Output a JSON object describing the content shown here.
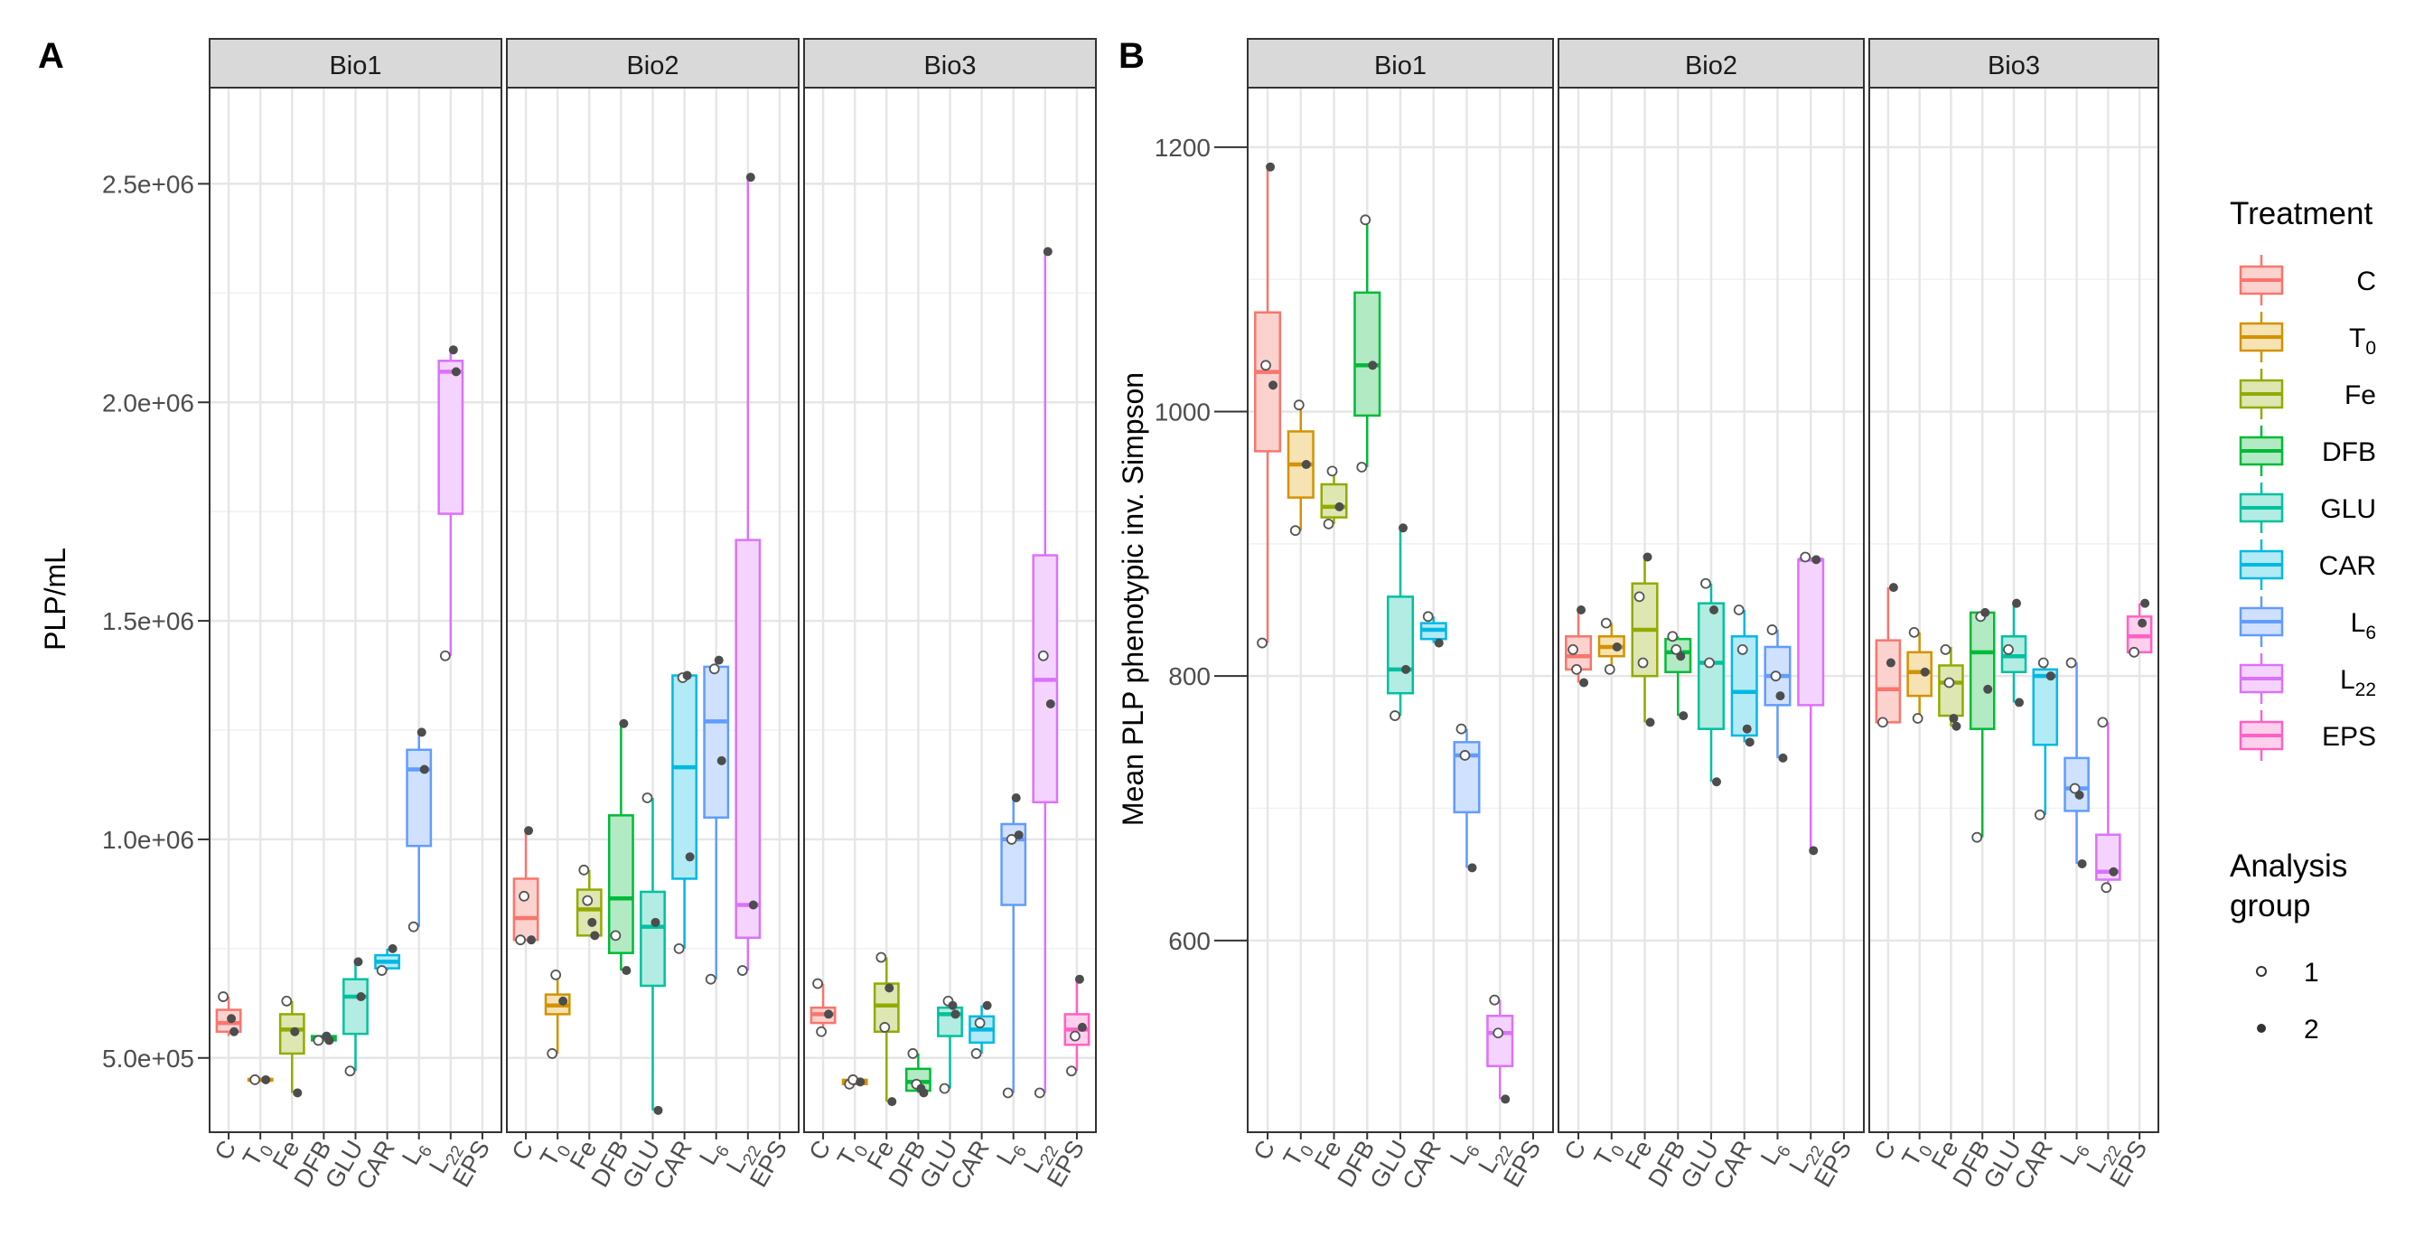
{
  "treatments": [
    {
      "key": "C",
      "main": "C",
      "sub": "",
      "color": "#F8766D",
      "fill": "#FCD2CF"
    },
    {
      "key": "T0",
      "main": "T",
      "sub": "0",
      "color": "#D39200",
      "fill": "#F6E2B2"
    },
    {
      "key": "Fe",
      "main": "Fe",
      "sub": "",
      "color": "#93AA00",
      "fill": "#DEE6B2"
    },
    {
      "key": "DFB",
      "main": "DFB",
      "sub": "",
      "color": "#00BA38",
      "fill": "#B2EAC3"
    },
    {
      "key": "GLU",
      "main": "GLU",
      "sub": "",
      "color": "#00C19F",
      "fill": "#B2ECE2"
    },
    {
      "key": "CAR",
      "main": "CAR",
      "sub": "",
      "color": "#00B9E3",
      "fill": "#B2EAF6"
    },
    {
      "key": "L6",
      "main": "L",
      "sub": "6",
      "color": "#619CFF",
      "fill": "#CFE1FF"
    },
    {
      "key": "L22",
      "main": "L",
      "sub": "22",
      "color": "#DB72FB",
      "fill": "#F4D4FE"
    },
    {
      "key": "EPS",
      "main": "EPS",
      "sub": "",
      "color": "#FF61C3",
      "fill": "#FFD0ED"
    }
  ],
  "legend": {
    "treatment_title": "Treatment",
    "group_title_line1": "Analysis",
    "group_title_line2": "group",
    "group_labels": [
      "1",
      "2"
    ]
  },
  "chart_data": [
    {
      "panel": "A",
      "type": "box",
      "ylabel": "PLP/mL",
      "ylim": [
        330000,
        2720000
      ],
      "yticks": [
        500000,
        1000000,
        1500000,
        2000000,
        2500000
      ],
      "ytick_labels": [
        "5.0e+05",
        "1.0e+06",
        "1.5e+06",
        "2.0e+06",
        "2.5e+06"
      ],
      "facets": [
        {
          "title": "Bio1",
          "boxes": [
            {
              "t": "C",
              "min": 550000,
              "q1": 560000,
              "med": 580000,
              "q3": 610000,
              "max": 640000,
              "p1": [
                640000
              ],
              "p2": [
                560000,
                590000
              ]
            },
            {
              "t": "T0",
              "min": 450000,
              "q1": 450000,
              "med": 450000,
              "q3": 452000,
              "max": 455000,
              "p1": [
                450000
              ],
              "p2": [
                450000
              ]
            },
            {
              "t": "Fe",
              "min": 420000,
              "q1": 510000,
              "med": 565000,
              "q3": 600000,
              "max": 630000,
              "p1": [
                630000
              ],
              "p2": [
                420000,
                560000
              ]
            },
            {
              "t": "DFB",
              "min": 540000,
              "q1": 540000,
              "med": 545000,
              "q3": 550000,
              "max": 550000,
              "p1": [
                540000
              ],
              "p2": [
                540000,
                550000
              ]
            },
            {
              "t": "GLU",
              "min": 470000,
              "q1": 555000,
              "med": 640000,
              "q3": 680000,
              "max": 720000,
              "p1": [
                470000
              ],
              "p2": [
                640000,
                720000
              ]
            },
            {
              "t": "CAR",
              "min": 700000,
              "q1": 705000,
              "med": 720000,
              "q3": 735000,
              "max": 750000,
              "p1": [
                700000
              ],
              "p2": [
                750000
              ]
            },
            {
              "t": "L6",
              "min": 800000,
              "q1": 985000,
              "med": 1160000,
              "q3": 1205000,
              "max": 1245000,
              "p1": [
                800000
              ],
              "p2": [
                1160000,
                1245000
              ]
            },
            {
              "t": "L22",
              "min": 1420000,
              "q1": 1745000,
              "med": 2070000,
              "q3": 2095000,
              "max": 2120000,
              "p1": [
                1420000
              ],
              "p2": [
                2070000,
                2120000
              ]
            },
            {
              "t": "EPS",
              "empty": true
            }
          ]
        },
        {
          "title": "Bio2",
          "boxes": [
            {
              "t": "C",
              "min": 770000,
              "q1": 770000,
              "med": 820000,
              "q3": 910000,
              "max": 1020000,
              "p1": [
                770000,
                870000
              ],
              "p2": [
                770000,
                1020000
              ]
            },
            {
              "t": "T0",
              "min": 510000,
              "q1": 600000,
              "med": 620000,
              "q3": 645000,
              "max": 690000,
              "p1": [
                510000,
                690000
              ],
              "p2": [
                630000
              ]
            },
            {
              "t": "Fe",
              "min": 780000,
              "q1": 780000,
              "med": 840000,
              "q3": 885000,
              "max": 930000,
              "p1": [
                930000,
                860000
              ],
              "p2": [
                780000,
                810000
              ]
            },
            {
              "t": "DFB",
              "min": 700000,
              "q1": 740000,
              "med": 865000,
              "q3": 1055000,
              "max": 1265000,
              "p1": [
                780000
              ],
              "p2": [
                700000,
                1265000
              ]
            },
            {
              "t": "GLU",
              "min": 380000,
              "q1": 665000,
              "med": 800000,
              "q3": 880000,
              "max": 1095000,
              "p1": [
                1095000
              ],
              "p2": [
                380000,
                810000
              ]
            },
            {
              "t": "CAR",
              "min": 750000,
              "q1": 910000,
              "med": 1165000,
              "q3": 1375000,
              "max": 1375000,
              "p1": [
                750000,
                1370000
              ],
              "p2": [
                960000,
                1375000
              ]
            },
            {
              "t": "L6",
              "min": 680000,
              "q1": 1050000,
              "med": 1270000,
              "q3": 1395000,
              "max": 1410000,
              "p1": [
                680000,
                1390000
              ],
              "p2": [
                1180000,
                1410000
              ]
            },
            {
              "t": "L22",
              "min": 700000,
              "q1": 775000,
              "med": 850000,
              "q3": 1685000,
              "max": 2515000,
              "p1": [
                700000
              ],
              "p2": [
                850000,
                2515000
              ]
            },
            {
              "t": "EPS",
              "empty": true
            }
          ]
        },
        {
          "title": "Bio3",
          "boxes": [
            {
              "t": "C",
              "min": 560000,
              "q1": 580000,
              "med": 600000,
              "q3": 615000,
              "max": 670000,
              "p1": [
                670000,
                560000
              ],
              "p2": [
                600000
              ]
            },
            {
              "t": "T0",
              "min": 440000,
              "q1": 440000,
              "med": 445000,
              "q3": 450000,
              "max": 455000,
              "p1": [
                440000,
                450000
              ],
              "p2": [
                445000
              ]
            },
            {
              "t": "Fe",
              "min": 400000,
              "q1": 560000,
              "med": 620000,
              "q3": 670000,
              "max": 730000,
              "p1": [
                730000,
                570000
              ],
              "p2": [
                400000,
                660000
              ]
            },
            {
              "t": "DFB",
              "min": 420000,
              "q1": 425000,
              "med": 445000,
              "q3": 475000,
              "max": 510000,
              "p1": [
                510000,
                440000
              ],
              "p2": [
                420000,
                430000
              ]
            },
            {
              "t": "GLU",
              "min": 430000,
              "q1": 550000,
              "med": 600000,
              "q3": 615000,
              "max": 630000,
              "p1": [
                430000,
                630000
              ],
              "p2": [
                600000,
                620000
              ]
            },
            {
              "t": "CAR",
              "min": 510000,
              "q1": 535000,
              "med": 565000,
              "q3": 595000,
              "max": 620000,
              "p1": [
                510000,
                580000
              ],
              "p2": [
                620000
              ]
            },
            {
              "t": "L6",
              "min": 420000,
              "q1": 850000,
              "med": 1000000,
              "q3": 1035000,
              "max": 1095000,
              "p1": [
                420000,
                1000000
              ],
              "p2": [
                1010000,
                1095000
              ]
            },
            {
              "t": "L22",
              "min": 420000,
              "q1": 1085000,
              "med": 1365000,
              "q3": 1650000,
              "max": 2345000,
              "p1": [
                420000,
                1420000
              ],
              "p2": [
                1310000,
                2345000
              ]
            },
            {
              "t": "EPS",
              "min": 470000,
              "q1": 530000,
              "med": 565000,
              "q3": 600000,
              "max": 680000,
              "p1": [
                470000,
                550000
              ],
              "p2": [
                570000,
                680000
              ]
            }
          ]
        }
      ]
    },
    {
      "panel": "B",
      "type": "box",
      "ylabel": "Mean PLP phenotypic inv. Simpson",
      "ylim": [
        455,
        1245
      ],
      "yticks": [
        600,
        800,
        1000,
        1200
      ],
      "ytick_labels": [
        "600",
        "800",
        "1000",
        "1200"
      ],
      "facets": [
        {
          "title": "Bio1",
          "boxes": [
            {
              "t": "C",
              "min": 825,
              "q1": 970,
              "med": 1030,
              "q3": 1075,
              "max": 1185,
              "p1": [
                825,
                1035
              ],
              "p2": [
                1020,
                1185
              ]
            },
            {
              "t": "T0",
              "min": 910,
              "q1": 935,
              "med": 960,
              "q3": 985,
              "max": 1005,
              "p1": [
                910,
                1005
              ],
              "p2": [
                960
              ]
            },
            {
              "t": "Fe",
              "min": 915,
              "q1": 920,
              "med": 928,
              "q3": 945,
              "max": 955,
              "p1": [
                915,
                955
              ],
              "p2": [
                928
              ]
            },
            {
              "t": "DFB",
              "min": 958,
              "q1": 997,
              "med": 1035,
              "q3": 1090,
              "max": 1145,
              "p1": [
                958,
                1145
              ],
              "p2": [
                1035
              ]
            },
            {
              "t": "GLU",
              "min": 770,
              "q1": 787,
              "med": 805,
              "q3": 860,
              "max": 912,
              "p1": [
                770
              ],
              "p2": [
                805,
                912
              ]
            },
            {
              "t": "CAR",
              "min": 825,
              "q1": 828,
              "med": 835,
              "q3": 840,
              "max": 845,
              "p1": [
                845
              ],
              "p2": [
                825
              ]
            },
            {
              "t": "L6",
              "min": 655,
              "q1": 697,
              "med": 740,
              "q3": 750,
              "max": 760,
              "p1": [
                760,
                740
              ],
              "p2": [
                655
              ]
            },
            {
              "t": "L22",
              "min": 480,
              "q1": 505,
              "med": 530,
              "q3": 543,
              "max": 555,
              "p1": [
                555,
                530
              ],
              "p2": [
                480
              ]
            },
            {
              "t": "EPS",
              "empty": true
            }
          ]
        },
        {
          "title": "Bio2",
          "boxes": [
            {
              "t": "C",
              "min": 795,
              "q1": 805,
              "med": 815,
              "q3": 830,
              "max": 850,
              "p1": [
                820,
                805
              ],
              "p2": [
                795,
                850
              ]
            },
            {
              "t": "T0",
              "min": 805,
              "q1": 815,
              "med": 822,
              "q3": 830,
              "max": 840,
              "p1": [
                840,
                805
              ],
              "p2": [
                822
              ]
            },
            {
              "t": "Fe",
              "min": 765,
              "q1": 800,
              "med": 835,
              "q3": 870,
              "max": 890,
              "p1": [
                860,
                810
              ],
              "p2": [
                765,
                890
              ]
            },
            {
              "t": "DFB",
              "min": 770,
              "q1": 803,
              "med": 818,
              "q3": 828,
              "max": 830,
              "p1": [
                830,
                820
              ],
              "p2": [
                770,
                815
              ]
            },
            {
              "t": "GLU",
              "min": 720,
              "q1": 760,
              "med": 810,
              "q3": 855,
              "max": 870,
              "p1": [
                870,
                810
              ],
              "p2": [
                720,
                850
              ]
            },
            {
              "t": "CAR",
              "min": 750,
              "q1": 755,
              "med": 788,
              "q3": 830,
              "max": 850,
              "p1": [
                850,
                820
              ],
              "p2": [
                750,
                760
              ]
            },
            {
              "t": "L6",
              "min": 738,
              "q1": 778,
              "med": 800,
              "q3": 822,
              "max": 835,
              "p1": [
                835,
                800
              ],
              "p2": [
                738,
                785
              ]
            },
            {
              "t": "L22",
              "min": 668,
              "q1": 778,
              "med": 888,
              "q3": 888,
              "max": 890,
              "p1": [
                890
              ],
              "p2": [
                888,
                668
              ]
            },
            {
              "t": "EPS",
              "empty": true
            }
          ]
        },
        {
          "title": "Bio3",
          "boxes": [
            {
              "t": "C",
              "min": 765,
              "q1": 765,
              "med": 790,
              "q3": 827,
              "max": 867,
              "p1": [
                765
              ],
              "p2": [
                867,
                810
              ]
            },
            {
              "t": "T0",
              "min": 768,
              "q1": 785,
              "med": 803,
              "q3": 818,
              "max": 833,
              "p1": [
                833,
                768
              ],
              "p2": [
                803
              ]
            },
            {
              "t": "Fe",
              "min": 762,
              "q1": 770,
              "med": 795,
              "q3": 808,
              "max": 822,
              "p1": [
                820,
                795
              ],
              "p2": [
                762,
                768
              ]
            },
            {
              "t": "DFB",
              "min": 678,
              "q1": 760,
              "med": 818,
              "q3": 848,
              "max": 848,
              "p1": [
                678,
                845
              ],
              "p2": [
                790,
                848
              ]
            },
            {
              "t": "GLU",
              "min": 780,
              "q1": 803,
              "med": 815,
              "q3": 830,
              "max": 855,
              "p1": [
                820
              ],
              "p2": [
                780,
                855
              ]
            },
            {
              "t": "CAR",
              "min": 695,
              "q1": 748,
              "med": 800,
              "q3": 805,
              "max": 810,
              "p1": [
                695,
                810
              ],
              "p2": [
                800
              ]
            },
            {
              "t": "L6",
              "min": 658,
              "q1": 698,
              "med": 715,
              "q3": 738,
              "max": 810,
              "p1": [
                810,
                715
              ],
              "p2": [
                658,
                710
              ]
            },
            {
              "t": "L22",
              "min": 640,
              "q1": 646,
              "med": 652,
              "q3": 680,
              "max": 765,
              "p1": [
                765,
                640
              ],
              "p2": [
                652
              ]
            },
            {
              "t": "EPS",
              "min": 818,
              "q1": 818,
              "med": 830,
              "q3": 845,
              "max": 855,
              "p1": [
                818
              ],
              "p2": [
                855,
                840
              ]
            }
          ]
        }
      ]
    }
  ]
}
